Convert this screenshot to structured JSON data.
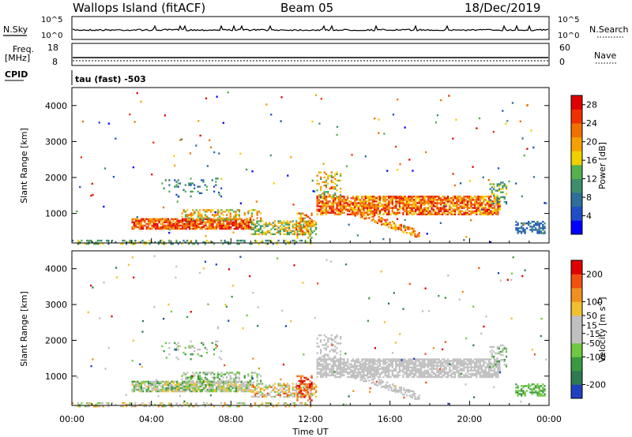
{
  "header": {
    "station": "Wallops Island (fitACF)",
    "beam": "Beam 05",
    "date": "18/Dec/2019"
  },
  "top_panels": {
    "nsky_label": "N.Sky",
    "nsearch_label": "N.Search",
    "nsky_ticks": [
      "10^5",
      "10^0"
    ],
    "nsearch_ticks": [
      "10^5",
      "10^0"
    ],
    "freq_label_1": "Freq.",
    "freq_label_2": "[MHz]",
    "freq_ticks": [
      "18",
      "8"
    ],
    "nave_label": "Nave",
    "nave_ticks": [
      "60",
      "0"
    ],
    "cpid_label": "CPID",
    "cpid_value": "tau (fast) -503"
  },
  "colors": {
    "power_scale": [
      "#0000ff",
      "#1e4fc8",
      "#2f6f9a",
      "#3c8f6a",
      "#55b050",
      "#f0d000",
      "#f5a000",
      "#f07000",
      "#f03000",
      "#e00000"
    ],
    "velocity_scale": [
      "#2040c0",
      "#2e7a50",
      "#3a9a40",
      "#70c840",
      "#c0c0c0",
      "#c0c0c0",
      "#f0c030",
      "#f09020",
      "#f05010",
      "#e00000"
    ]
  },
  "chart_data": [
    {
      "type": "heatmap",
      "panel": "power",
      "ylabel": "Slant Range [km]",
      "xlabel": "",
      "xlim": [
        "00:00",
        "24:00"
      ],
      "x_ticks": [
        "00:00",
        "04:00",
        "08:00",
        "12:00",
        "16:00",
        "20:00",
        "00:00"
      ],
      "ylim": [
        180,
        4500
      ],
      "y_ticks": [
        1000,
        2000,
        3000,
        4000
      ],
      "colorbar_label": "Power [dB]",
      "colorbar_ticks": [
        4,
        8,
        12,
        16,
        20,
        24,
        28
      ],
      "colorbar_range": [
        0,
        30
      ]
    },
    {
      "type": "heatmap",
      "panel": "velocity",
      "ylabel": "Slant Range [km]",
      "xlabel": "Time UT",
      "xlim": [
        "00:00",
        "24:00"
      ],
      "x_ticks": [
        "00:00",
        "04:00",
        "08:00",
        "12:00",
        "16:00",
        "20:00",
        "00:00"
      ],
      "ylim": [
        180,
        4500
      ],
      "y_ticks": [
        1000,
        2000,
        3000,
        4000
      ],
      "colorbar_label": "Velocity [m s^-1]",
      "colorbar_ticks": [
        200,
        100,
        50,
        15,
        -15,
        -50,
        -100,
        -200
      ],
      "colorbar_range": [
        -250,
        250
      ]
    }
  ]
}
